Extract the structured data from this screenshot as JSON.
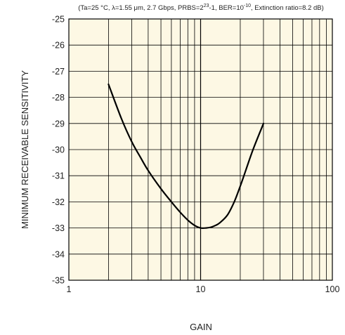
{
  "chart_data": {
    "type": "line",
    "title": "",
    "conditions": {
      "prefix": "(Ta=25 °C, λ=1.55 μm, 2.7 Gbps, PRBS=2",
      "prbs_exp": "23",
      "mid": "-1, BER=10",
      "ber_exp": "-10",
      "suffix": ", Extinction ratio=8.2 dB)"
    },
    "xlabel": "GAIN",
    "ylabel": "MINIMUM RECEIVABLE SENSITIVITY",
    "xscale": "log",
    "xlim": [
      1,
      100
    ],
    "ylim": [
      -35,
      -25
    ],
    "x_ticks": [
      "1",
      "10",
      "100"
    ],
    "y_ticks": [
      "-25",
      "-26",
      "-27",
      "-28",
      "-29",
      "-30",
      "-31",
      "-32",
      "-33",
      "-34",
      "-35"
    ],
    "grid": true,
    "series": [
      {
        "points": [
          [
            2,
            -27.5
          ],
          [
            2.5,
            -28.8
          ],
          [
            3,
            -29.7
          ],
          [
            3.5,
            -30.3
          ],
          [
            4,
            -30.8
          ],
          [
            5,
            -31.5
          ],
          [
            6,
            -32.0
          ],
          [
            7,
            -32.4
          ],
          [
            8,
            -32.7
          ],
          [
            9,
            -32.9
          ],
          [
            10,
            -33.0
          ],
          [
            11,
            -33.0
          ],
          [
            12,
            -32.97
          ],
          [
            13,
            -32.9
          ],
          [
            14,
            -32.8
          ],
          [
            16,
            -32.5
          ],
          [
            18,
            -32.0
          ],
          [
            20,
            -31.4
          ],
          [
            22,
            -30.8
          ],
          [
            25,
            -30.0
          ],
          [
            30,
            -29.0
          ]
        ]
      }
    ],
    "colors": {
      "plot_background": "#fdf8e4",
      "line": "#000000"
    }
  }
}
